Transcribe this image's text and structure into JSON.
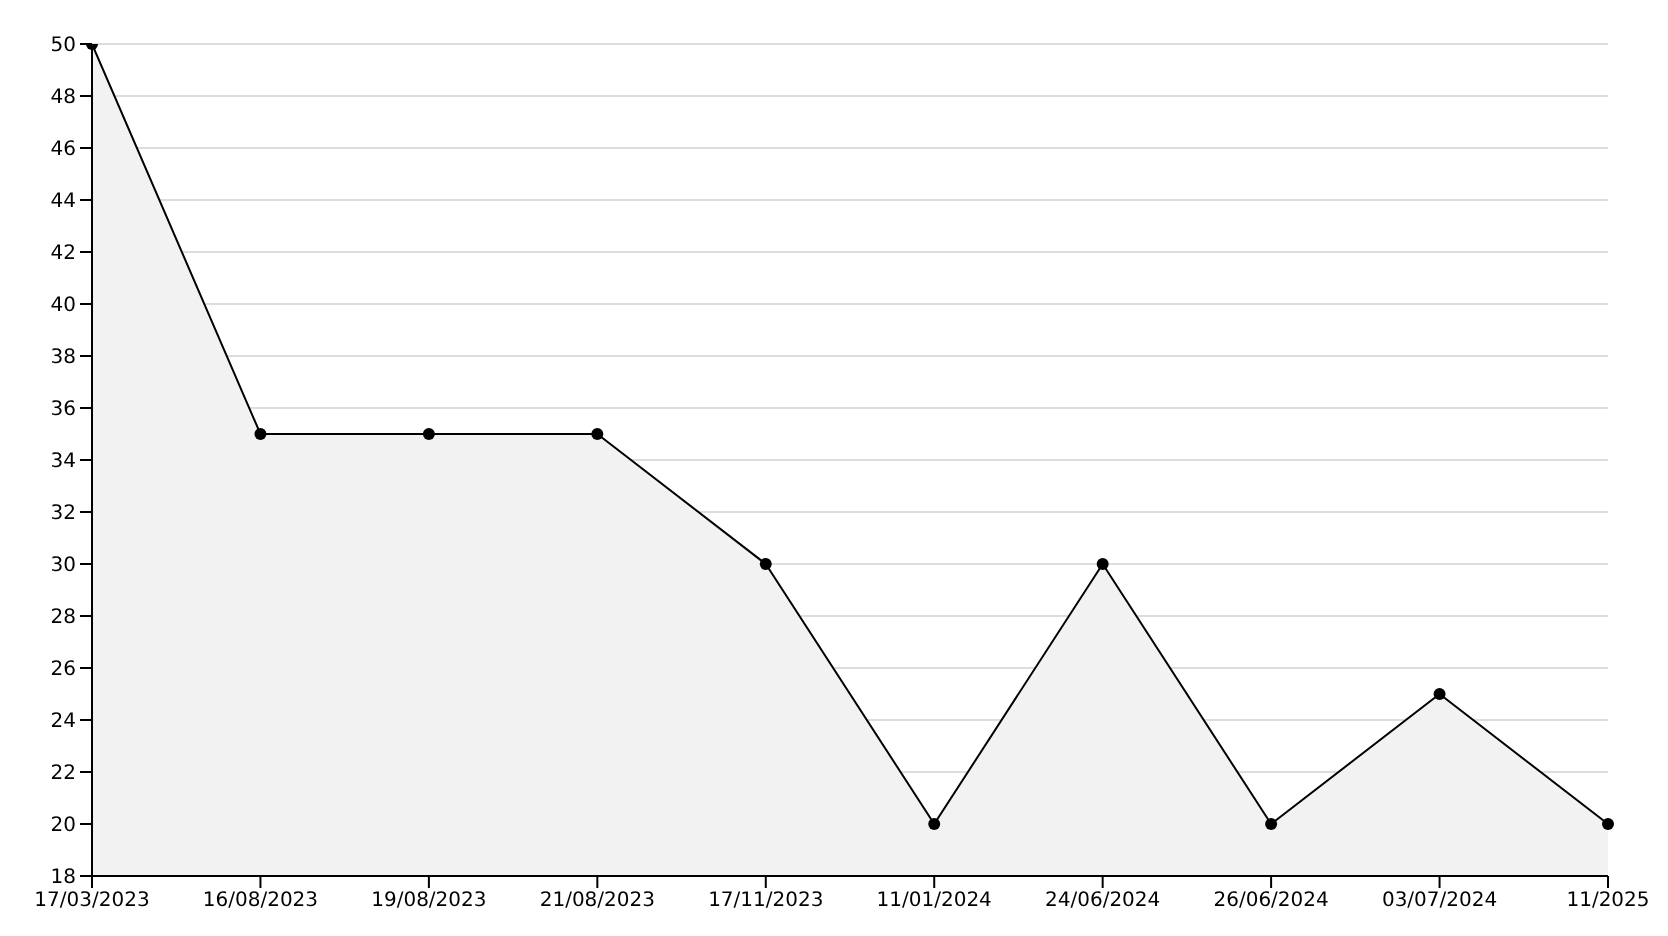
{
  "chart_data": {
    "type": "area",
    "categories": [
      "17/03/2023",
      "16/08/2023",
      "19/08/2023",
      "21/08/2023",
      "17/11/2023",
      "11/01/2024",
      "24/06/2024",
      "26/06/2024",
      "03/07/2024",
      "11/2025"
    ],
    "series": [
      {
        "color": "#000000",
        "values": [
          50,
          35,
          35,
          35,
          30,
          20,
          30,
          20,
          25,
          20
        ]
      }
    ],
    "ylim": [
      18,
      50
    ],
    "yticks": [
      18,
      20,
      22,
      24,
      26,
      28,
      30,
      32,
      34,
      36,
      38,
      40,
      42,
      44,
      46,
      48,
      50
    ],
    "grid": "y",
    "marker": "circle",
    "line_style": "solid"
  }
}
